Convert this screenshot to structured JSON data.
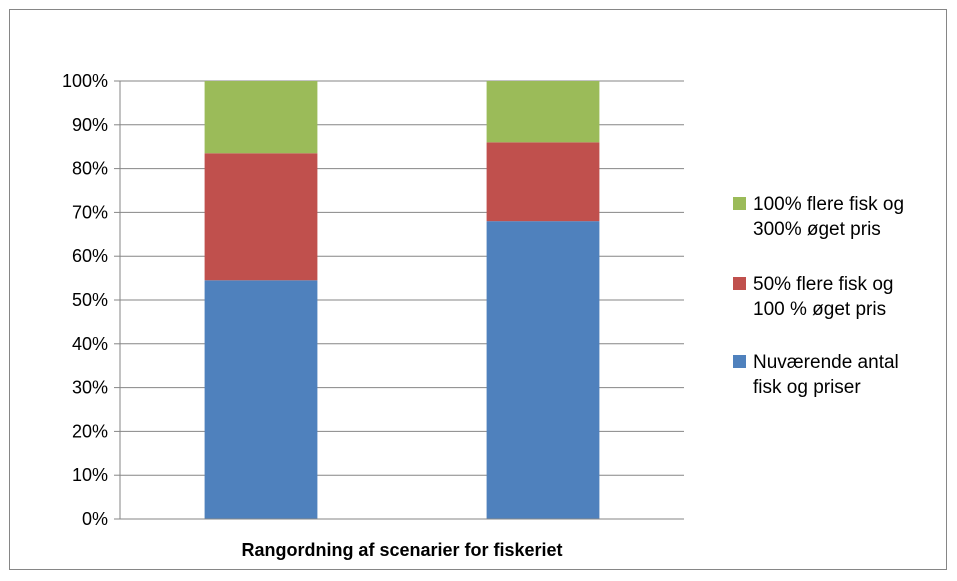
{
  "chart_data": {
    "type": "bar",
    "stacked": true,
    "percent_stacked": true,
    "categories": [
      "",
      ""
    ],
    "series": [
      {
        "name": "Nuværende antal fisk og priser",
        "name_lines": [
          "Nuværende antal",
          "fisk og priser"
        ],
        "color": "#4F81BD",
        "values": [
          54.5,
          68
        ]
      },
      {
        "name": "50% flere fisk og 100 % øget pris",
        "name_lines": [
          "50% flere fisk og",
          "100 % øget pris"
        ],
        "color": "#C0504D",
        "values": [
          29,
          18
        ]
      },
      {
        "name": "100% flere fisk og 300% øget pris",
        "name_lines": [
          "100% flere fisk og",
          "300% øget pris"
        ],
        "color": "#9BBB59",
        "values": [
          16.5,
          14
        ]
      }
    ],
    "xlabel": "Rangordning af scenarier for fiskeriet",
    "ylabel": "",
    "ylim": [
      0,
      100
    ],
    "yticks": [
      "0%",
      "10%",
      "20%",
      "30%",
      "40%",
      "50%",
      "60%",
      "70%",
      "80%",
      "90%",
      "100%"
    ],
    "grid": true,
    "legend_position": "right"
  }
}
